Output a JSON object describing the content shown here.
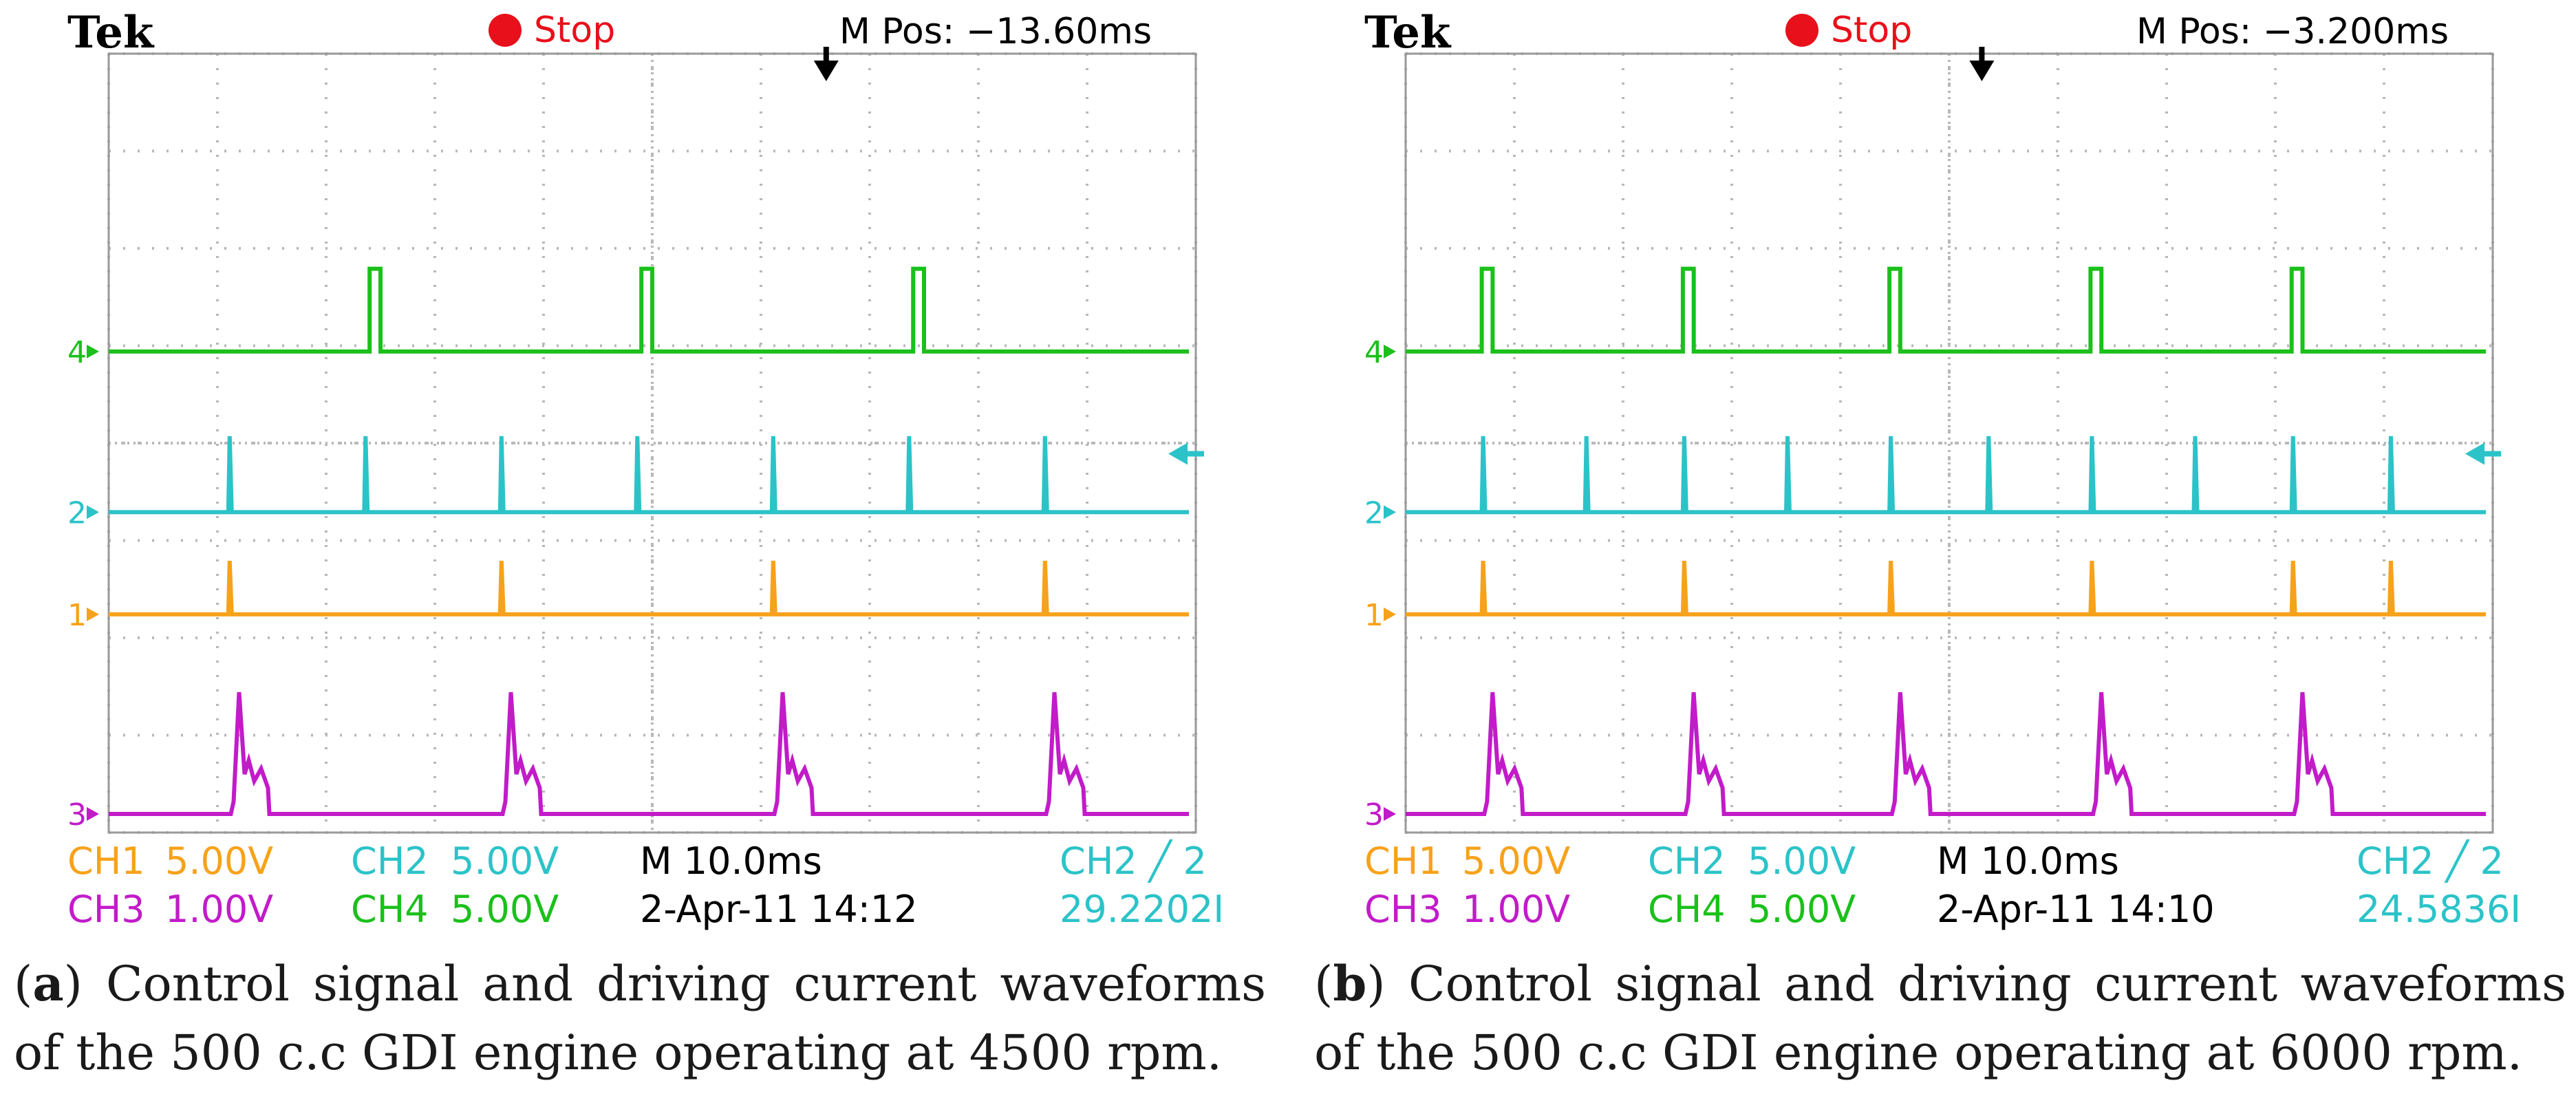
{
  "colors": {
    "ch1": "#f7a21b",
    "ch2": "#2bc3c8",
    "ch3": "#c21bc9",
    "ch4": "#1bc01b",
    "stop": "#e8101a",
    "grid": "#b8b8b8"
  },
  "chart_data": [
    {
      "type": "line",
      "title": "Tek oscilloscope capture (a)",
      "brand": "Tek",
      "acq_state": "Stop",
      "m_pos": "M Pos: −13.60ms",
      "timebase": "M 10.0ms",
      "date_time": "2-Apr-11 14:12",
      "trigger_source": "CH2 ╱ 2",
      "frequency_readout": "29.2202I",
      "channels": [
        {
          "id": "CH1",
          "scale": "5.00V"
        },
        {
          "id": "CH2",
          "scale": "5.00V"
        },
        {
          "id": "CH3",
          "scale": "1.00V"
        },
        {
          "id": "CH4",
          "scale": "5.00V"
        }
      ],
      "x_unit": "divisions (10.0 ms/div)",
      "xlim": [
        0,
        10
      ],
      "series": [
        {
          "name": "CH4",
          "marker": "4",
          "baseline_div": 4.75,
          "pulse_height_div": 0.85,
          "pulse_width_div": 0.1,
          "pulse_x_div": [
            2.4,
            4.9,
            7.4
          ]
        },
        {
          "name": "CH2",
          "marker": "2",
          "baseline_div": 3.1,
          "pulse_height_div": 0.78,
          "pulse_x_div": [
            1.1,
            2.35,
            3.6,
            4.85,
            6.1,
            7.35,
            8.6
          ]
        },
        {
          "name": "CH1",
          "marker": "1",
          "baseline_div": 2.05,
          "pulse_height_div": 0.55,
          "pulse_x_div": [
            1.1,
            3.6,
            6.1,
            8.6
          ]
        },
        {
          "name": "CH3",
          "marker": "3",
          "baseline_div": 0,
          "peak_div": 1.25,
          "plateau_div": 0.55,
          "pulse_x_div": [
            1.25,
            3.75,
            6.25,
            8.75
          ]
        }
      ],
      "caption_label": "a",
      "caption_text": "Control signal and driving current waveforms of the 500 c.c GDI engine operating at 4500 rpm."
    },
    {
      "type": "line",
      "title": "Tek oscilloscope capture (b)",
      "brand": "Tek",
      "acq_state": "Stop",
      "m_pos": "M Pos: −3.200ms",
      "timebase": "M 10.0ms",
      "date_time": "2-Apr-11 14:10",
      "trigger_source": "CH2 ╱ 2",
      "frequency_readout": "24.5836I",
      "channels": [
        {
          "id": "CH1",
          "scale": "5.00V"
        },
        {
          "id": "CH2",
          "scale": "5.00V"
        },
        {
          "id": "CH3",
          "scale": "1.00V"
        },
        {
          "id": "CH4",
          "scale": "5.00V"
        }
      ],
      "x_unit": "divisions (10.0 ms/div)",
      "xlim": [
        0,
        10
      ],
      "series": [
        {
          "name": "CH4",
          "marker": "4",
          "baseline_div": 4.75,
          "pulse_height_div": 0.85,
          "pulse_width_div": 0.1,
          "pulse_x_div": [
            0.7,
            2.55,
            4.45,
            6.3,
            8.15
          ]
        },
        {
          "name": "CH2",
          "marker": "2",
          "baseline_div": 3.1,
          "pulse_height_div": 0.78,
          "pulse_x_div": [
            0.7,
            1.65,
            2.55,
            3.5,
            4.45,
            5.35,
            6.3,
            7.25,
            8.15,
            9.05
          ]
        },
        {
          "name": "CH1",
          "marker": "1",
          "baseline_div": 2.05,
          "pulse_height_div": 0.55,
          "pulse_x_div": [
            0.7,
            2.55,
            4.45,
            6.3,
            8.15,
            9.05
          ]
        },
        {
          "name": "CH3",
          "marker": "3",
          "baseline_div": 0,
          "peak_div": 1.25,
          "plateau_div": 0.55,
          "pulse_x_div": [
            0.85,
            2.7,
            4.6,
            6.45,
            8.3
          ]
        }
      ],
      "caption_label": "b",
      "caption_text": "Control signal and driving current waveforms of the 500 c.c GDI engine operating at 6000 rpm."
    }
  ]
}
